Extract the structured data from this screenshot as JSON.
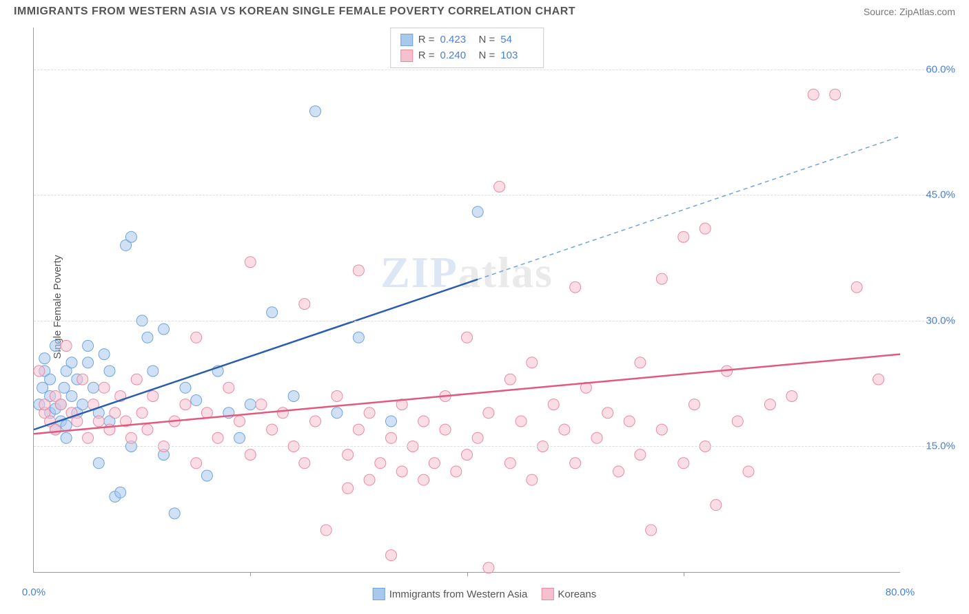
{
  "header": {
    "title": "IMMIGRANTS FROM WESTERN ASIA VS KOREAN SINGLE FEMALE POVERTY CORRELATION CHART",
    "source": "Source: ZipAtlas.com"
  },
  "chart": {
    "type": "scatter",
    "ylabel": "Single Female Poverty",
    "xlim": [
      0,
      80
    ],
    "ylim": [
      0,
      65
    ],
    "xtick_labels": [
      "0.0%",
      "80.0%"
    ],
    "xtick_positions": [
      0,
      80
    ],
    "xtick_minor": [
      20,
      40,
      60
    ],
    "ytick_labels": [
      "15.0%",
      "30.0%",
      "45.0%",
      "60.0%"
    ],
    "ytick_positions": [
      15,
      30,
      45,
      60
    ],
    "background_color": "#ffffff",
    "grid_color": "#dddddd",
    "marker_radius": 8,
    "marker_opacity": 0.55,
    "series": [
      {
        "name": "Immigrants from Western Asia",
        "color_fill": "#a9c9ec",
        "color_stroke": "#6fa3dd",
        "line_solid_color": "#2a5db0",
        "line_dash_color": "#6fa3dd",
        "line_solid_range": [
          0,
          41
        ],
        "line_dash_range": [
          41,
          80
        ],
        "line_y_at_x0": 17,
        "line_y_at_x80": 52,
        "R": "0.423",
        "N": "54",
        "points": [
          [
            0.5,
            20
          ],
          [
            0.8,
            22
          ],
          [
            1,
            24
          ],
          [
            1,
            25.5
          ],
          [
            1.5,
            19
          ],
          [
            1.5,
            21
          ],
          [
            1.5,
            23
          ],
          [
            2,
            17
          ],
          [
            2,
            19.5
          ],
          [
            2,
            27
          ],
          [
            2.5,
            18
          ],
          [
            2.5,
            20
          ],
          [
            2.8,
            22
          ],
          [
            3,
            16
          ],
          [
            3,
            17.5
          ],
          [
            3,
            24
          ],
          [
            3.5,
            21
          ],
          [
            3.5,
            25
          ],
          [
            4,
            19
          ],
          [
            4,
            23
          ],
          [
            4.5,
            20
          ],
          [
            5,
            25
          ],
          [
            5,
            27
          ],
          [
            5.5,
            22
          ],
          [
            6,
            13
          ],
          [
            6,
            19
          ],
          [
            6.5,
            26
          ],
          [
            7,
            24
          ],
          [
            7,
            18
          ],
          [
            7.5,
            9
          ],
          [
            8,
            9.5
          ],
          [
            8.5,
            39
          ],
          [
            9,
            40
          ],
          [
            9,
            15
          ],
          [
            10,
            30
          ],
          [
            10.5,
            28
          ],
          [
            11,
            24
          ],
          [
            12,
            14
          ],
          [
            12,
            29
          ],
          [
            13,
            7
          ],
          [
            14,
            22
          ],
          [
            15,
            20.5
          ],
          [
            16,
            11.5
          ],
          [
            17,
            24
          ],
          [
            18,
            19
          ],
          [
            19,
            16
          ],
          [
            20,
            20
          ],
          [
            22,
            31
          ],
          [
            24,
            21
          ],
          [
            26,
            55
          ],
          [
            28,
            19
          ],
          [
            30,
            28
          ],
          [
            33,
            18
          ],
          [
            41,
            43
          ]
        ]
      },
      {
        "name": "Koreans",
        "color_fill": "#f5c1cf",
        "color_stroke": "#e78ba3",
        "line_solid_color": "#e15a7e",
        "line_dash_color": "#e78ba3",
        "line_solid_range": [
          0,
          80
        ],
        "line_dash_range": [
          80,
          80
        ],
        "line_y_at_x0": 16.5,
        "line_y_at_x80": 26,
        "R": "0.240",
        "N": "103",
        "points": [
          [
            0.5,
            24
          ],
          [
            1,
            19
          ],
          [
            1,
            20
          ],
          [
            1.5,
            18
          ],
          [
            2,
            17
          ],
          [
            2,
            21
          ],
          [
            2.5,
            20
          ],
          [
            3,
            27
          ],
          [
            3.5,
            19
          ],
          [
            4,
            18
          ],
          [
            4.5,
            23
          ],
          [
            5,
            16
          ],
          [
            5.5,
            20
          ],
          [
            6,
            18
          ],
          [
            6.5,
            22
          ],
          [
            7,
            17
          ],
          [
            7.5,
            19
          ],
          [
            8,
            21
          ],
          [
            8.5,
            18
          ],
          [
            9,
            16
          ],
          [
            9.5,
            23
          ],
          [
            10,
            19
          ],
          [
            10.5,
            17
          ],
          [
            11,
            21
          ],
          [
            12,
            15
          ],
          [
            13,
            18
          ],
          [
            14,
            20
          ],
          [
            15,
            13
          ],
          [
            15,
            28
          ],
          [
            16,
            19
          ],
          [
            17,
            16
          ],
          [
            18,
            22
          ],
          [
            19,
            18
          ],
          [
            20,
            37
          ],
          [
            20,
            14
          ],
          [
            21,
            20
          ],
          [
            22,
            17
          ],
          [
            23,
            19
          ],
          [
            24,
            15
          ],
          [
            25,
            32
          ],
          [
            25,
            13
          ],
          [
            26,
            18
          ],
          [
            27,
            5
          ],
          [
            28,
            21
          ],
          [
            29,
            14
          ],
          [
            29,
            10
          ],
          [
            30,
            36
          ],
          [
            30,
            17
          ],
          [
            31,
            11
          ],
          [
            31,
            19
          ],
          [
            32,
            13
          ],
          [
            33,
            16
          ],
          [
            33,
            2
          ],
          [
            34,
            12
          ],
          [
            34,
            20
          ],
          [
            35,
            15
          ],
          [
            36,
            18
          ],
          [
            36,
            11
          ],
          [
            37,
            13
          ],
          [
            38,
            17
          ],
          [
            38,
            21
          ],
          [
            39,
            12
          ],
          [
            40,
            14
          ],
          [
            40,
            28
          ],
          [
            41,
            16
          ],
          [
            42,
            19
          ],
          [
            42,
            0.5
          ],
          [
            43,
            46
          ],
          [
            44,
            13
          ],
          [
            44,
            23
          ],
          [
            45,
            18
          ],
          [
            46,
            11
          ],
          [
            46,
            25
          ],
          [
            47,
            15
          ],
          [
            48,
            20
          ],
          [
            49,
            17
          ],
          [
            50,
            13
          ],
          [
            50,
            34
          ],
          [
            51,
            22
          ],
          [
            52,
            16
          ],
          [
            53,
            19
          ],
          [
            54,
            12
          ],
          [
            55,
            18
          ],
          [
            56,
            14
          ],
          [
            56,
            25
          ],
          [
            57,
            5
          ],
          [
            58,
            17
          ],
          [
            58,
            35
          ],
          [
            60,
            13
          ],
          [
            60,
            40
          ],
          [
            61,
            20
          ],
          [
            62,
            15
          ],
          [
            62,
            41
          ],
          [
            63,
            8
          ],
          [
            64,
            24
          ],
          [
            65,
            18
          ],
          [
            66,
            12
          ],
          [
            68,
            20
          ],
          [
            70,
            21
          ],
          [
            72,
            57
          ],
          [
            74,
            57
          ],
          [
            76,
            34
          ],
          [
            78,
            23
          ]
        ]
      }
    ],
    "legend_top": {
      "rows": [
        {
          "swatch_fill": "#a9c9ec",
          "swatch_stroke": "#6fa3dd",
          "r_label": "R =",
          "r_val": "0.423",
          "n_label": "N =",
          "n_val": "54"
        },
        {
          "swatch_fill": "#f5c1cf",
          "swatch_stroke": "#e78ba3",
          "r_label": "R =",
          "r_val": "0.240",
          "n_label": "N =",
          "n_val": "103"
        }
      ]
    },
    "legend_bottom": {
      "items": [
        {
          "swatch_fill": "#a9c9ec",
          "swatch_stroke": "#6fa3dd",
          "label": "Immigrants from Western Asia"
        },
        {
          "swatch_fill": "#f5c1cf",
          "swatch_stroke": "#e78ba3",
          "label": "Koreans"
        }
      ]
    },
    "watermark": {
      "text1": "ZIP",
      "text2": "atlas"
    }
  }
}
